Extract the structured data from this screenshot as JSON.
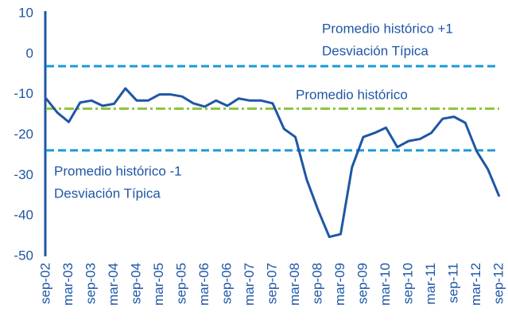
{
  "chart_data": {
    "type": "line",
    "categories": [
      "sep-02",
      null,
      "mar-03",
      null,
      "sep-03",
      null,
      "mar-04",
      null,
      "sep-04",
      null,
      "mar-05",
      null,
      "sep-05",
      null,
      "mar-06",
      null,
      "sep-06",
      null,
      "mar-07",
      null,
      "sep-07",
      null,
      "mar-08",
      null,
      "sep-08",
      null,
      "mar-09",
      null,
      "sep-09",
      null,
      "mar-10",
      null,
      "sep-10",
      null,
      "mar-11",
      null,
      "sep-11",
      null,
      "mar-12",
      null,
      "sep-12"
    ],
    "series": [
      {
        "color": "#1f56a5",
        "values": [
          -11,
          -14.5,
          -16.8,
          -12,
          -11.5,
          -12.8,
          -12.3,
          -8.5,
          -11.5,
          -11.5,
          -10,
          -10,
          -10.5,
          -12.2,
          -13,
          -11.5,
          -12.8,
          -11,
          -11.5,
          -11.5,
          -12.2,
          -18.5,
          -20.5,
          -31,
          -38.5,
          -45.2,
          -44.5,
          -28,
          -20.5,
          -19.5,
          -18.2,
          -23,
          -21.5,
          -21,
          -19.5,
          -16,
          -15.5,
          -17,
          -24,
          -28.5,
          -35.2
        ]
      }
    ],
    "reference_lines": [
      {
        "value": -3,
        "color": "#1b9ad9",
        "label": [
          "Promedio histórico +1",
          "Desviación Típica"
        ]
      },
      {
        "value": -13.5,
        "color": "#8dc63f",
        "label": [
          "Promedio histórico"
        ]
      },
      {
        "value": -23.8,
        "color": "#1b9ad9",
        "label": [
          "Promedio histórico -1",
          "Desviación Típica"
        ]
      }
    ],
    "ylim": [
      -50,
      10
    ],
    "yticks": [
      -50,
      -40,
      -30,
      -20,
      -10,
      0,
      10
    ]
  }
}
